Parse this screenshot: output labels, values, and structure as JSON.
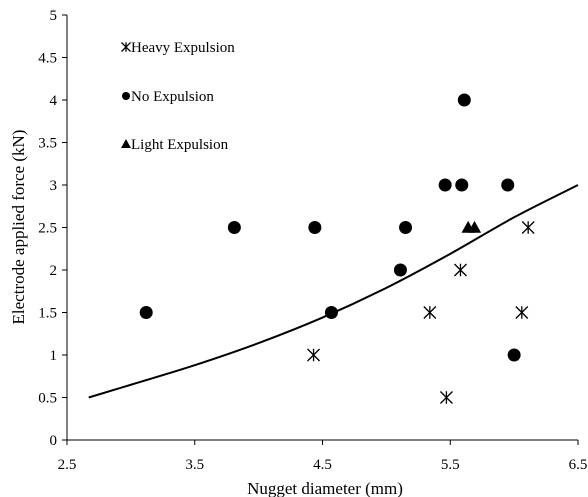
{
  "chart_data": {
    "type": "scatter",
    "xlabel": "Nugget diameter (mm)",
    "ylabel": "Electrode applied force (kN)",
    "xlim": [
      2.5,
      6.5
    ],
    "ylim": [
      0,
      5
    ],
    "x_ticks": [
      "2.5",
      "3.5",
      "4.5",
      "5.5",
      "6.5"
    ],
    "y_ticks": [
      "0",
      "0.5",
      "1",
      "1.5",
      "2",
      "2.5",
      "3",
      "3.5",
      "4",
      "4.5",
      "5"
    ],
    "grid": false,
    "legend_position": "top-left",
    "series": [
      {
        "name": "Heavy Expulsion",
        "marker": "asterisk",
        "color": "#000000",
        "points": [
          [
            4.43,
            1.0
          ],
          [
            5.34,
            1.5
          ],
          [
            5.58,
            2.0
          ],
          [
            5.47,
            0.5
          ],
          [
            6.06,
            1.5
          ],
          [
            6.11,
            2.5
          ]
        ]
      },
      {
        "name": "No Expulsion",
        "marker": "circle",
        "color": "#000000",
        "points": [
          [
            3.12,
            1.5
          ],
          [
            3.81,
            2.5
          ],
          [
            4.44,
            2.5
          ],
          [
            4.57,
            1.5
          ],
          [
            5.11,
            2.0
          ],
          [
            5.15,
            2.5
          ],
          [
            5.46,
            3.0
          ],
          [
            5.59,
            3.0
          ],
          [
            5.61,
            4.0
          ],
          [
            5.95,
            3.0
          ],
          [
            6.0,
            1.0
          ]
        ]
      },
      {
        "name": "Light Expulsion",
        "marker": "triangle",
        "color": "#000000",
        "points": [
          [
            5.64,
            2.5
          ],
          [
            5.69,
            2.5
          ]
        ]
      }
    ],
    "curve": {
      "color": "#000000",
      "points": [
        [
          2.67,
          0.5
        ],
        [
          3.0,
          0.65
        ],
        [
          3.5,
          0.88
        ],
        [
          4.0,
          1.14
        ],
        [
          4.5,
          1.44
        ],
        [
          5.0,
          1.79
        ],
        [
          5.5,
          2.19
        ],
        [
          6.0,
          2.62
        ],
        [
          6.5,
          3.0
        ]
      ]
    }
  }
}
